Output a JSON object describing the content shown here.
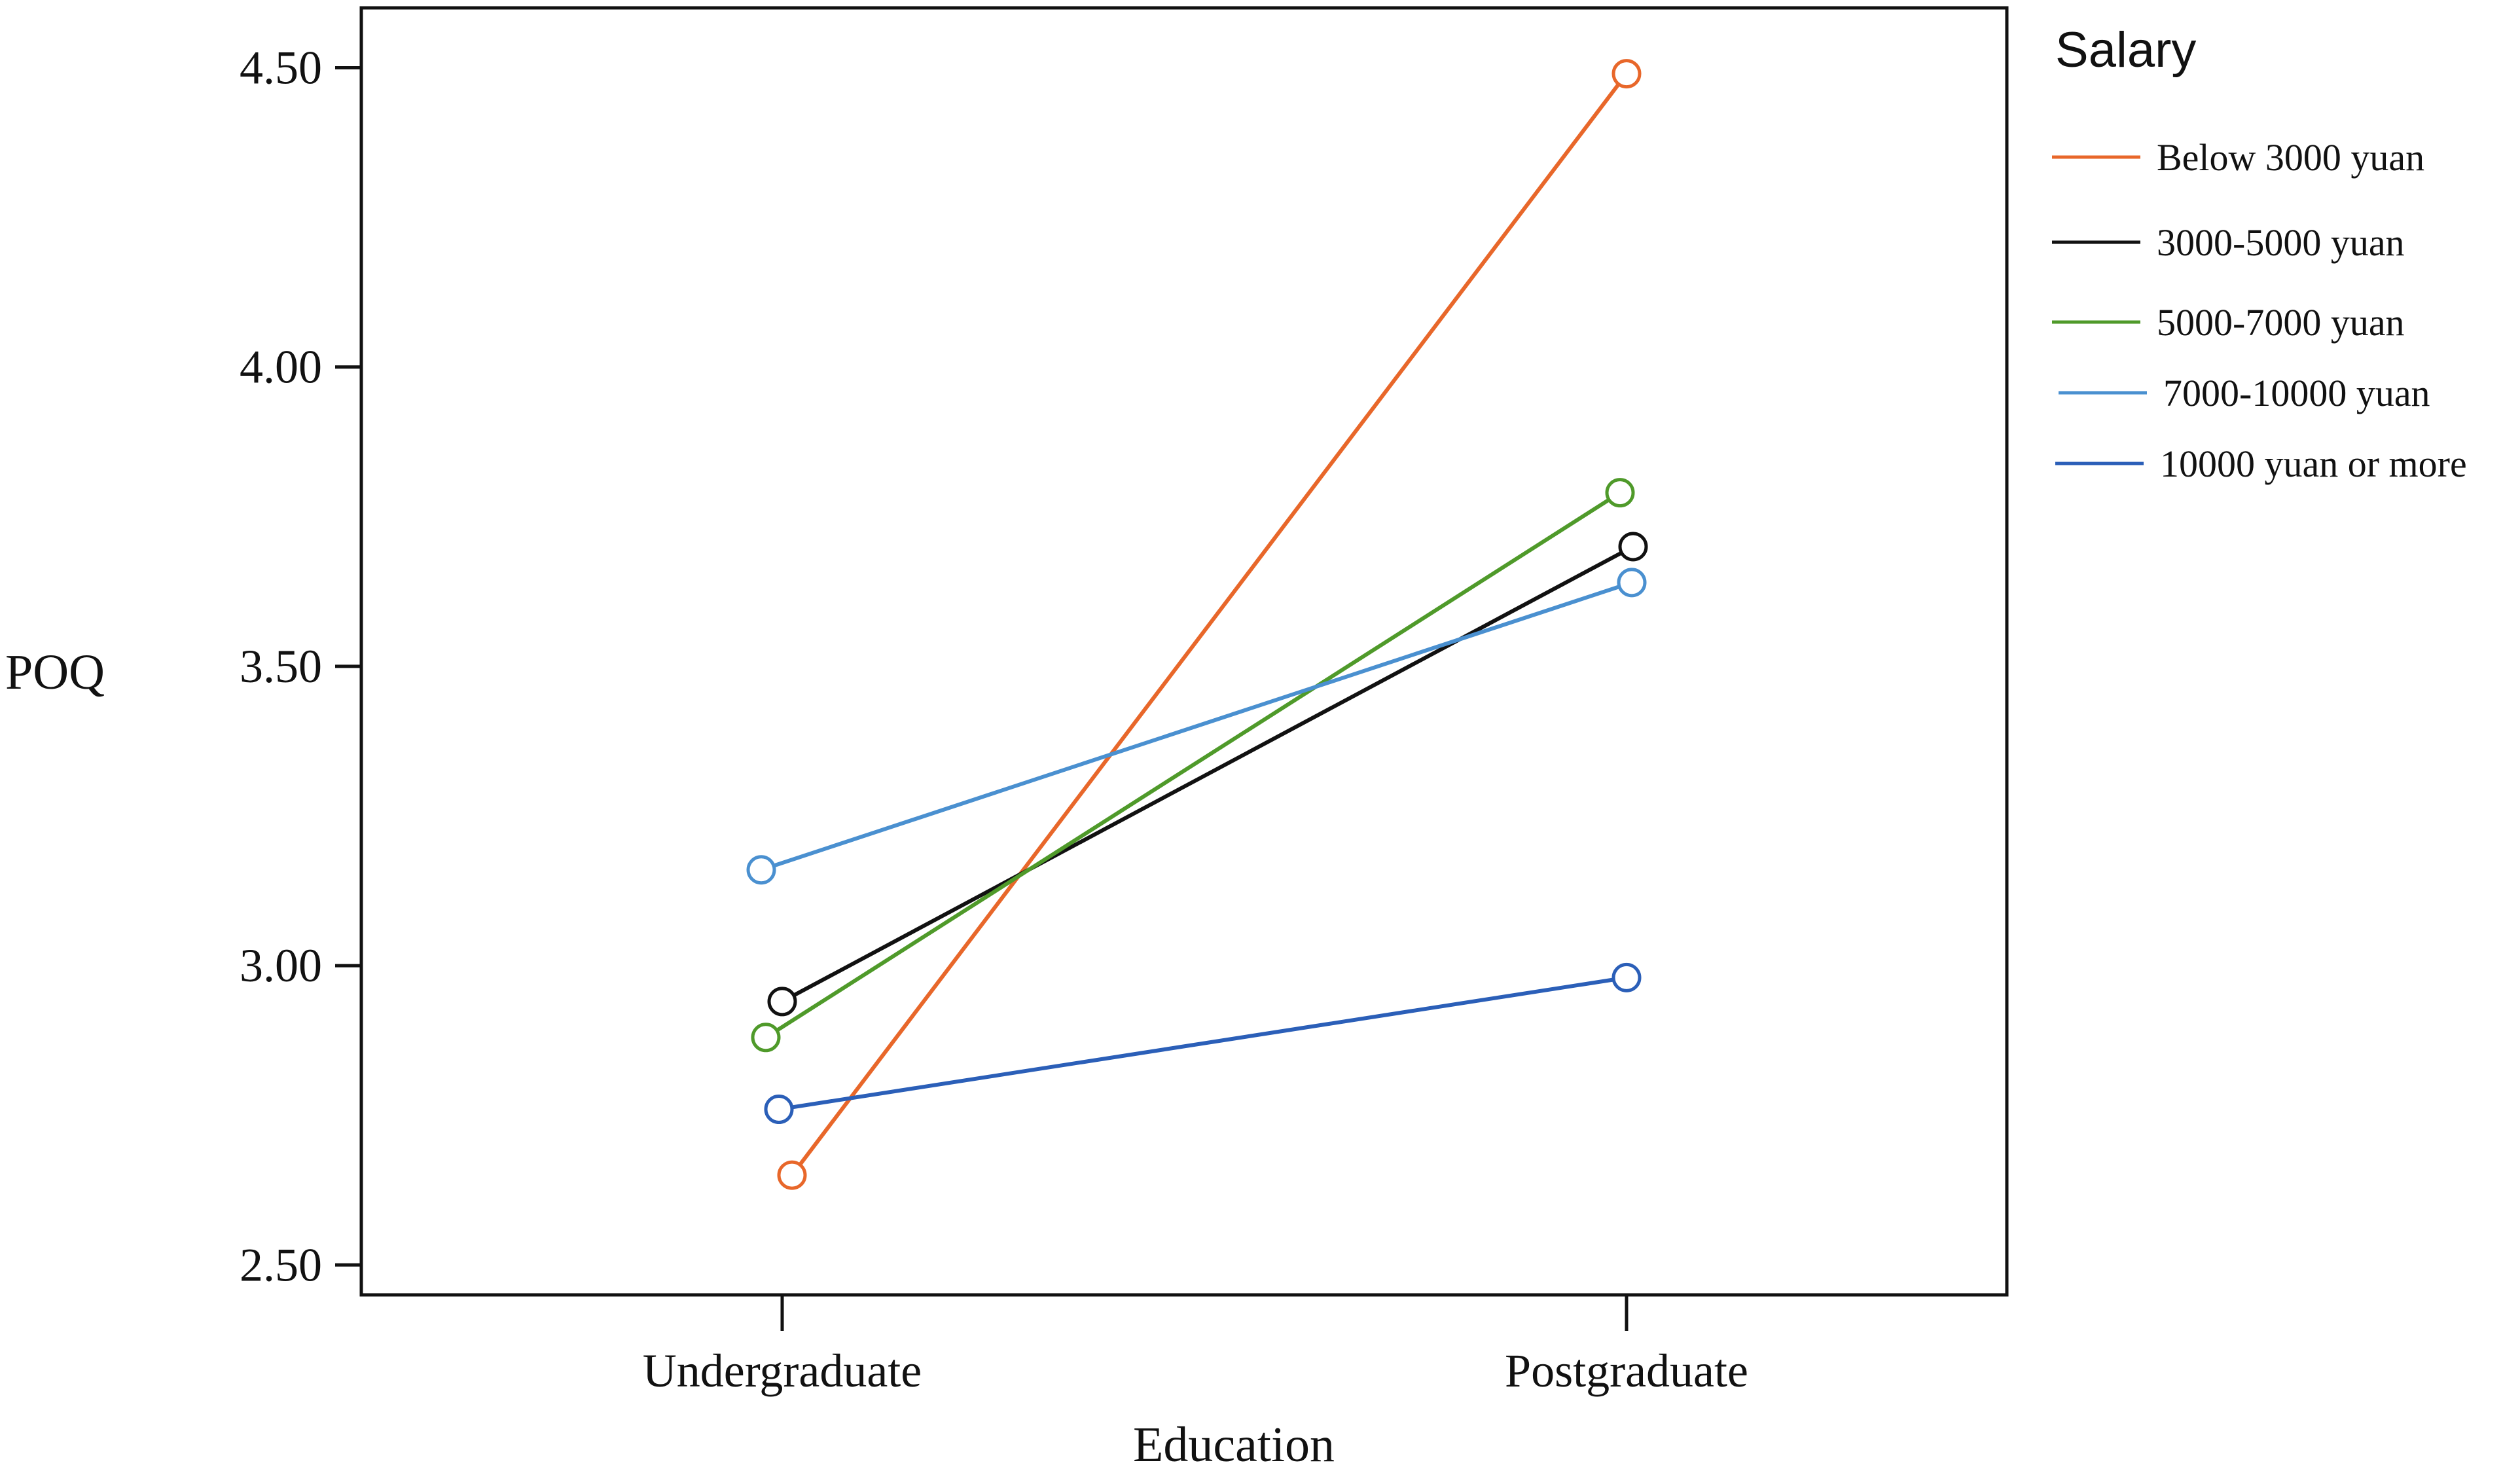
{
  "chart_data": {
    "type": "line",
    "title": "",
    "xlabel": "Education",
    "ylabel": "POQ",
    "categories": [
      "Undergraduate",
      "Postgraduate"
    ],
    "ylim": [
      2.45,
      4.6
    ],
    "yticks": [
      "2.50",
      "3.00",
      "3.50",
      "4.00",
      "4.50"
    ],
    "ytick_values": [
      2.5,
      3.0,
      3.5,
      4.0,
      4.5
    ],
    "grid": false,
    "legend": {
      "title": "Salary",
      "placement": "right"
    },
    "series": [
      {
        "name": "Below 3000 yuan",
        "values": [
          2.65,
          4.49
        ],
        "color": "#e8672a"
      },
      {
        "name": "3000-5000 yuan",
        "values": [
          2.94,
          3.7
        ],
        "color": "#111111"
      },
      {
        "name": "5000-7000 yuan",
        "values": [
          2.88,
          3.79
        ],
        "color": "#4f9a2a"
      },
      {
        "name": "7000-10000 yuan",
        "values": [
          3.16,
          3.64
        ],
        "color": "#4a90d0"
      },
      {
        "name": "10000 yuan or more",
        "values": [
          2.76,
          2.98
        ],
        "color": "#2b5fb8"
      }
    ]
  }
}
